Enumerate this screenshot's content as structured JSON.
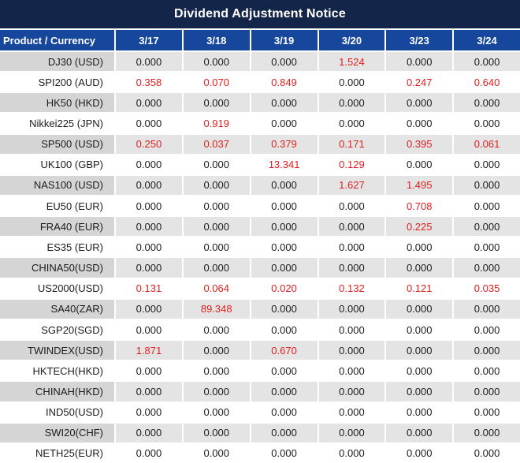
{
  "title": "Dividend Adjustment Notice",
  "table": {
    "product_header": "Product / Currency",
    "date_columns": [
      "3/17",
      "3/18",
      "3/19",
      "3/20",
      "3/23",
      "3/24"
    ],
    "rows": [
      {
        "product": "DJ30 (USD)",
        "values": [
          "0.000",
          "0.000",
          "0.000",
          "1.524",
          "0.000",
          "0.000"
        ],
        "red": [
          false,
          false,
          false,
          true,
          false,
          false
        ]
      },
      {
        "product": "SPI200 (AUD)",
        "values": [
          "0.358",
          "0.070",
          "0.849",
          "0.000",
          "0.247",
          "0.640"
        ],
        "red": [
          true,
          true,
          true,
          false,
          true,
          true
        ]
      },
      {
        "product": "HK50 (HKD)",
        "values": [
          "0.000",
          "0.000",
          "0.000",
          "0.000",
          "0.000",
          "0.000"
        ],
        "red": [
          false,
          false,
          false,
          false,
          false,
          false
        ]
      },
      {
        "product": "Nikkei225 (JPN)",
        "values": [
          "0.000",
          "0.919",
          "0.000",
          "0.000",
          "0.000",
          "0.000"
        ],
        "red": [
          false,
          true,
          false,
          false,
          false,
          false
        ]
      },
      {
        "product": "SP500 (USD)",
        "values": [
          "0.250",
          "0.037",
          "0.379",
          "0.171",
          "0.395",
          "0.061"
        ],
        "red": [
          true,
          true,
          true,
          true,
          true,
          true
        ]
      },
      {
        "product": "UK100 (GBP)",
        "values": [
          "0.000",
          "0.000",
          "13.341",
          "0.129",
          "0.000",
          "0.000"
        ],
        "red": [
          false,
          false,
          true,
          true,
          false,
          false
        ]
      },
      {
        "product": "NAS100 (USD)",
        "values": [
          "0.000",
          "0.000",
          "0.000",
          "1.627",
          "1.495",
          "0.000"
        ],
        "red": [
          false,
          false,
          false,
          true,
          true,
          false
        ]
      },
      {
        "product": "EU50 (EUR)",
        "values": [
          "0.000",
          "0.000",
          "0.000",
          "0.000",
          "0.708",
          "0.000"
        ],
        "red": [
          false,
          false,
          false,
          false,
          true,
          false
        ]
      },
      {
        "product": "FRA40 (EUR)",
        "values": [
          "0.000",
          "0.000",
          "0.000",
          "0.000",
          "0.225",
          "0.000"
        ],
        "red": [
          false,
          false,
          false,
          false,
          true,
          false
        ]
      },
      {
        "product": "ES35 (EUR)",
        "values": [
          "0.000",
          "0.000",
          "0.000",
          "0.000",
          "0.000",
          "0.000"
        ],
        "red": [
          false,
          false,
          false,
          false,
          false,
          false
        ]
      },
      {
        "product": "CHINA50(USD)",
        "values": [
          "0.000",
          "0.000",
          "0.000",
          "0.000",
          "0.000",
          "0.000"
        ],
        "red": [
          false,
          false,
          false,
          false,
          false,
          false
        ]
      },
      {
        "product": "US2000(USD)",
        "values": [
          "0.131",
          "0.064",
          "0.020",
          "0.132",
          "0.121",
          "0.035"
        ],
        "red": [
          true,
          true,
          true,
          true,
          true,
          true
        ]
      },
      {
        "product": "SA40(ZAR)",
        "values": [
          "0.000",
          "89.348",
          "0.000",
          "0.000",
          "0.000",
          "0.000"
        ],
        "red": [
          false,
          true,
          false,
          false,
          false,
          false
        ]
      },
      {
        "product": "SGP20(SGD)",
        "values": [
          "0.000",
          "0.000",
          "0.000",
          "0.000",
          "0.000",
          "0.000"
        ],
        "red": [
          false,
          false,
          false,
          false,
          false,
          false
        ]
      },
      {
        "product": "TWINDEX(USD)",
        "values": [
          "1.871",
          "0.000",
          "0.670",
          "0.000",
          "0.000",
          "0.000"
        ],
        "red": [
          true,
          false,
          true,
          false,
          false,
          false
        ]
      },
      {
        "product": "HKTECH(HKD)",
        "values": [
          "0.000",
          "0.000",
          "0.000",
          "0.000",
          "0.000",
          "0.000"
        ],
        "red": [
          false,
          false,
          false,
          false,
          false,
          false
        ]
      },
      {
        "product": "CHINAH(HKD)",
        "values": [
          "0.000",
          "0.000",
          "0.000",
          "0.000",
          "0.000",
          "0.000"
        ],
        "red": [
          false,
          false,
          false,
          false,
          false,
          false
        ]
      },
      {
        "product": "IND50(USD)",
        "values": [
          "0.000",
          "0.000",
          "0.000",
          "0.000",
          "0.000",
          "0.000"
        ],
        "red": [
          false,
          false,
          false,
          false,
          false,
          false
        ]
      },
      {
        "product": "SWI20(CHF)",
        "values": [
          "0.000",
          "0.000",
          "0.000",
          "0.000",
          "0.000",
          "0.000"
        ],
        "red": [
          false,
          false,
          false,
          false,
          false,
          false
        ]
      },
      {
        "product": "NETH25(EUR)",
        "values": [
          "0.000",
          "0.000",
          "0.000",
          "0.000",
          "0.000",
          "0.000"
        ],
        "red": [
          false,
          false,
          false,
          false,
          false,
          false
        ]
      }
    ]
  },
  "colors": {
    "title_bg": "#13264a",
    "header_bg": "#17479c",
    "alt_row_label_bg": "#d5d5d5",
    "alt_row_value_bg": "#e4e4e4",
    "red_value": "#e02020",
    "text": "#1b1b1b"
  }
}
